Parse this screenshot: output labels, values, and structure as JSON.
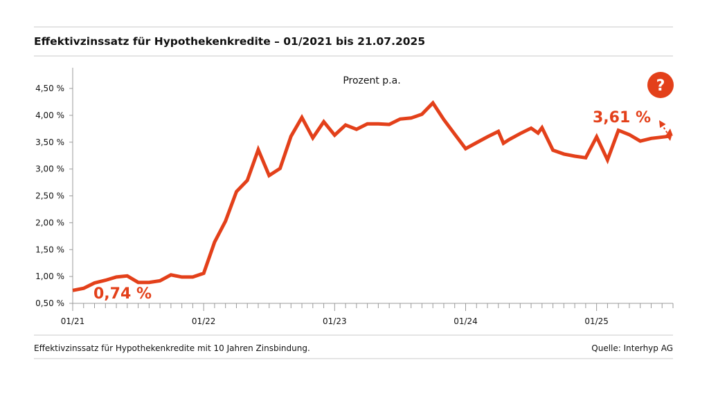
{
  "title": "Effektivzinssatz für Hypothekenkredite – 01/2021 bis 21.07.2025",
  "footnote": "Effektivzinssatz für Hypothekenkredite mit 10 Jahren Zinsbindung.",
  "source": "Quelle: Interhyp AG",
  "help_icon": "question-mark-icon",
  "colors": {
    "line": "#e3401a",
    "axis": "#999999",
    "text": "#111111"
  },
  "chart_data": {
    "type": "line",
    "title": "Effektivzinssatz für Hypothekenkredite – 01/2021 bis 21.07.2025",
    "unit_label": "Prozent p.a.",
    "xlabel": "",
    "ylabel": "",
    "ylim": [
      0.5,
      4.5
    ],
    "yticks": [
      0.5,
      1.0,
      1.5,
      2.0,
      2.5,
      3.0,
      3.5,
      4.0,
      4.5
    ],
    "ytick_labels": [
      "0,50 %",
      "1,00 %",
      "1,50 %",
      "2,00 %",
      "2,50 %",
      "3,00 %",
      "3,50 %",
      "4,00 %",
      "4,50 %"
    ],
    "xlim": [
      "2021-01",
      "2025-08"
    ],
    "xticks": [
      "2021-01",
      "2022-01",
      "2023-01",
      "2024-01",
      "2025-01"
    ],
    "xtick_labels": [
      "01/21",
      "01/22",
      "01/23",
      "01/24",
      "01/25"
    ],
    "grid": false,
    "series": [
      {
        "color": "#e3401a",
        "points": [
          [
            "2021-01",
            0.74
          ],
          [
            "2021-02",
            0.78
          ],
          [
            "2021-03",
            0.88
          ],
          [
            "2021-04",
            0.93
          ],
          [
            "2021-05",
            0.99
          ],
          [
            "2021-06",
            1.01
          ],
          [
            "2021-07",
            0.89
          ],
          [
            "2021-08",
            0.89
          ],
          [
            "2021-09",
            0.92
          ],
          [
            "2021-10",
            1.03
          ],
          [
            "2021-11",
            0.99
          ],
          [
            "2021-12",
            0.99
          ],
          [
            "2022-01",
            1.06
          ],
          [
            "2022-02",
            1.64
          ],
          [
            "2022-03",
            2.03
          ],
          [
            "2022-04",
            2.58
          ],
          [
            "2022-05",
            2.79
          ],
          [
            "2022-06",
            3.36
          ],
          [
            "2022-07",
            2.88
          ],
          [
            "2022-08",
            3.01
          ],
          [
            "2022-09",
            3.61
          ],
          [
            "2022-10",
            3.96
          ],
          [
            "2022-11",
            3.58
          ],
          [
            "2022-12",
            3.88
          ],
          [
            "2023-01",
            3.63
          ],
          [
            "2023-02",
            3.82
          ],
          [
            "2023-03",
            3.74
          ],
          [
            "2023-04",
            3.84
          ],
          [
            "2023-05",
            3.84
          ],
          [
            "2023-06",
            3.83
          ],
          [
            "2023-07",
            3.93
          ],
          [
            "2023-08",
            3.95
          ],
          [
            "2023-09",
            4.02
          ],
          [
            "2023-10",
            4.23
          ],
          [
            "2023-11",
            3.92
          ],
          [
            "2023-12",
            3.65
          ],
          [
            "2024-01",
            3.38
          ],
          [
            "2024-02",
            3.49
          ],
          [
            "2024-03",
            3.6
          ],
          [
            "2024-04",
            3.7
          ],
          [
            "2024-04-15",
            3.48
          ],
          [
            "2024-05",
            3.55
          ],
          [
            "2024-06",
            3.66
          ],
          [
            "2024-07",
            3.76
          ],
          [
            "2024-07-20",
            3.67
          ],
          [
            "2024-08",
            3.77
          ],
          [
            "2024-09",
            3.35
          ],
          [
            "2024-10",
            3.28
          ],
          [
            "2024-11",
            3.24
          ],
          [
            "2024-12",
            3.21
          ],
          [
            "2025-01",
            3.6
          ],
          [
            "2025-02",
            3.17
          ],
          [
            "2025-03",
            3.72
          ],
          [
            "2025-04",
            3.64
          ],
          [
            "2025-05",
            3.52
          ],
          [
            "2025-06",
            3.57
          ],
          [
            "2025-07-21",
            3.61
          ]
        ]
      }
    ],
    "annotations": [
      {
        "text": "0,74 %",
        "x": "2021-01",
        "y": 0.74
      },
      {
        "text": "3,61 %",
        "x": "2025-07-21",
        "y": 3.61
      }
    ]
  }
}
